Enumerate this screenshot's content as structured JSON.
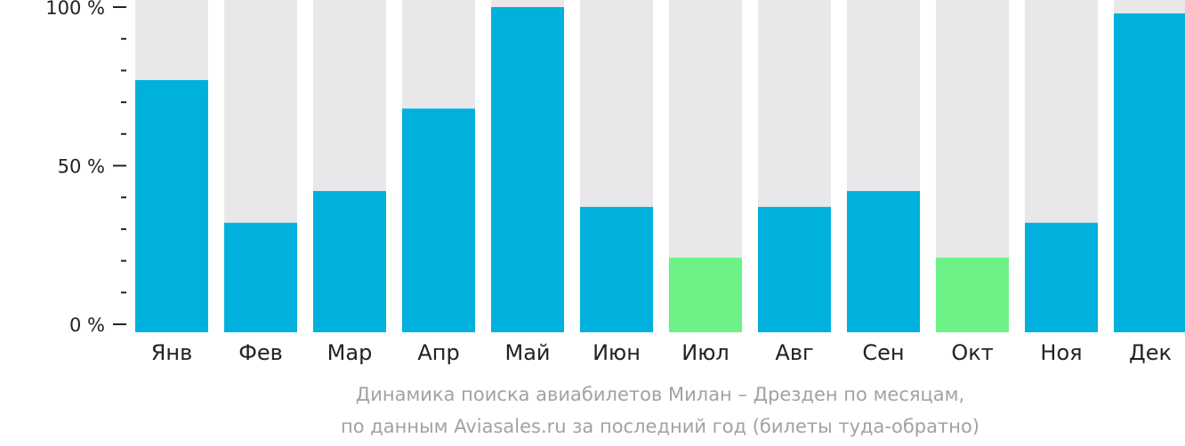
{
  "chart_data": {
    "type": "bar",
    "categories": [
      "Янв",
      "Фев",
      "Мар",
      "Апр",
      "Май",
      "Июн",
      "Июл",
      "Авг",
      "Сен",
      "Окт",
      "Ноя",
      "Дек"
    ],
    "values": [
      77,
      32,
      42,
      68,
      100,
      37,
      21,
      37,
      42,
      21,
      32,
      98
    ],
    "ylim": [
      0,
      100
    ],
    "yticks": [
      {
        "value": 0,
        "label": "0 %"
      },
      {
        "value": 50,
        "label": "50 %"
      },
      {
        "value": 100,
        "label": "100 %"
      }
    ],
    "minor_tick_step": 10,
    "highlight_lowest": true,
    "colors": {
      "bar": "#00b0dd",
      "bar_lowest": "#6cf287",
      "bar_background": "#e8e8ea",
      "axis": "#222222"
    }
  },
  "caption": {
    "line1": "Динамика поиска авиабилетов Милан – Дрезден по месяцам,",
    "line2": "по данным Aviasales.ru за последний год (билеты туда-обратно)"
  }
}
